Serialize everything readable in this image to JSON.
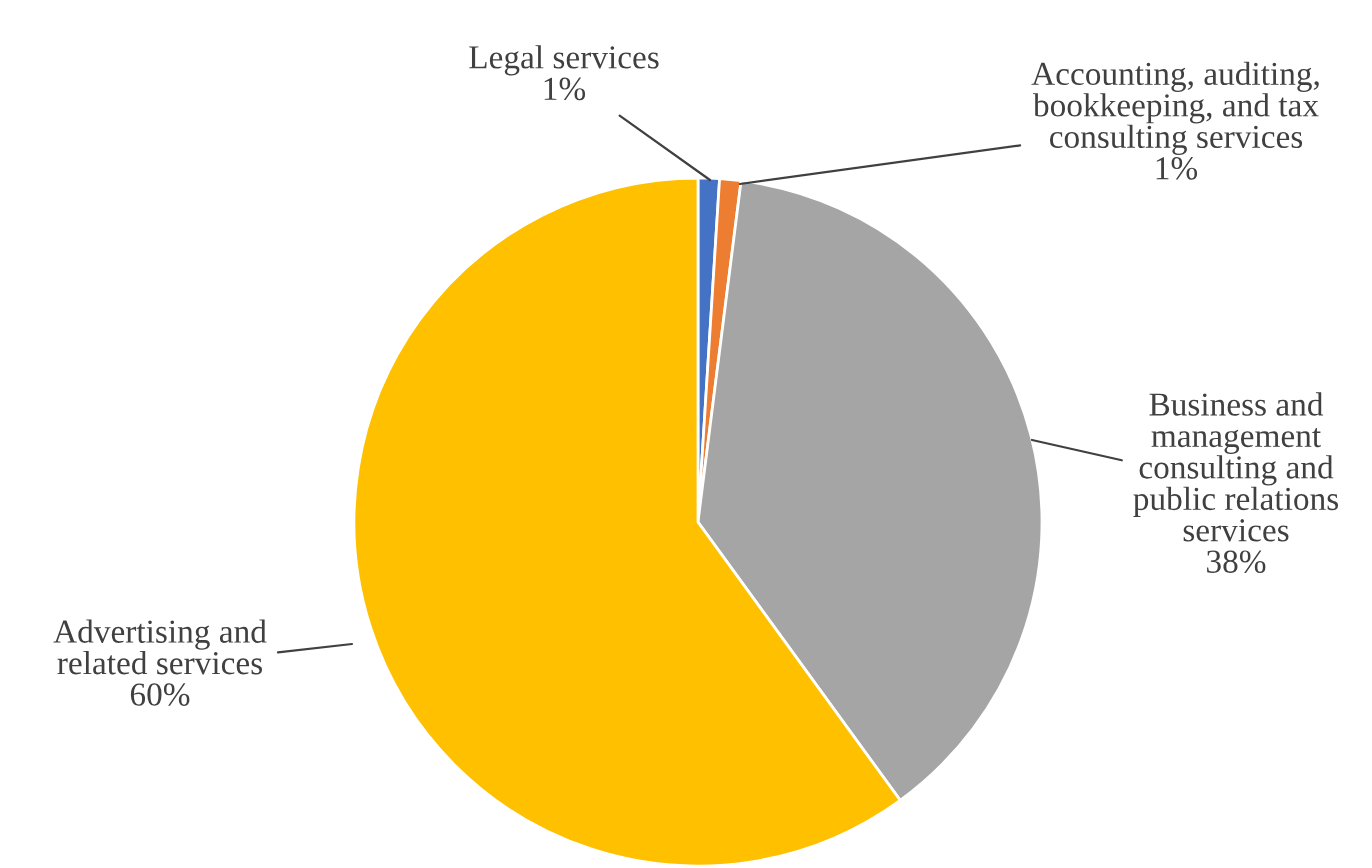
{
  "chart_data": {
    "type": "pie",
    "categories": [
      "Legal services",
      "Accounting, auditing, bookkeeping, and tax consulting services",
      "Business and management consulting and public relations services",
      "Advertising and related services"
    ],
    "values": [
      1,
      1,
      38,
      60
    ],
    "value_labels": [
      "1%",
      "1%",
      "38%",
      "60%"
    ],
    "colors": [
      "#4472c4",
      "#ed7d31",
      "#a5a5a5",
      "#ffc000"
    ],
    "legend": false
  }
}
